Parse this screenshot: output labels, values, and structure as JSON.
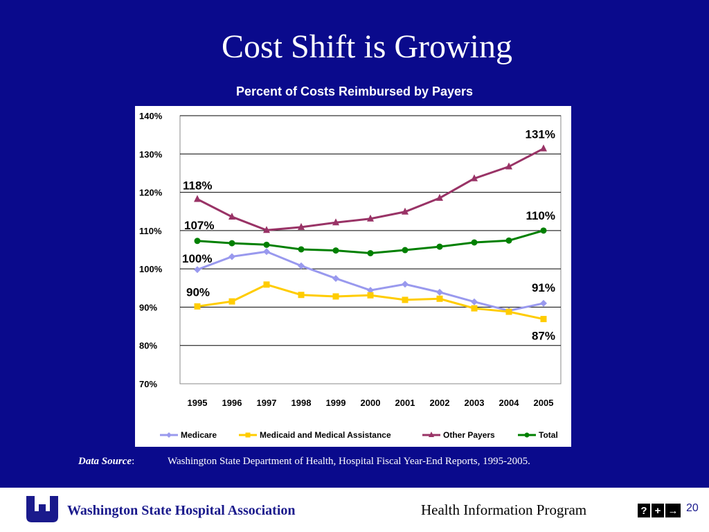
{
  "slide": {
    "title": "Cost Shift is Growing"
  },
  "chart_data": {
    "type": "line",
    "title": "Percent of Costs Reimbursed by Payers",
    "xlabel": "",
    "ylabel": "",
    "x": [
      "1995",
      "1996",
      "1997",
      "1998",
      "1999",
      "2000",
      "2001",
      "2002",
      "2003",
      "2004",
      "2005"
    ],
    "ylim": [
      70,
      140
    ],
    "yticks": [
      70,
      80,
      90,
      100,
      110,
      120,
      130,
      140
    ],
    "ytick_labels": [
      "70%",
      "80%",
      "90%",
      "100%",
      "110%",
      "120%",
      "130%",
      "140%"
    ],
    "grid": true,
    "legend_position": "bottom",
    "series": [
      {
        "name": "Medicare",
        "color": "#9999ee",
        "marker": "diamond",
        "values": [
          99.8,
          103.2,
          104.5,
          100.8,
          97.5,
          94.4,
          96.0,
          93.9,
          91.4,
          89.1,
          91.0
        ]
      },
      {
        "name": "Medicaid and Medical Assistance",
        "color": "#ffcc00",
        "marker": "square",
        "values": [
          90.2,
          91.5,
          95.9,
          93.2,
          92.8,
          93.1,
          91.9,
          92.2,
          89.7,
          88.8,
          86.9
        ]
      },
      {
        "name": "Other Payers",
        "color": "#993366",
        "marker": "triangle",
        "values": [
          118.2,
          113.6,
          110.1,
          110.9,
          112.1,
          113.1,
          114.9,
          118.5,
          123.6,
          126.7,
          131.4
        ]
      },
      {
        "name": "Total",
        "color": "#008000",
        "marker": "circle",
        "values": [
          107.3,
          106.7,
          106.3,
          105.1,
          104.8,
          104.1,
          104.9,
          105.8,
          106.9,
          107.4,
          110.0
        ]
      }
    ],
    "annotations": [
      {
        "text": "118%",
        "x": "1995",
        "series": "Other Payers"
      },
      {
        "text": "107%",
        "x": "1995",
        "series": "Total"
      },
      {
        "text": "100%",
        "x": "1995",
        "series": "Medicare"
      },
      {
        "text": "90%",
        "x": "1995",
        "series": "Medicaid and Medical Assistance"
      },
      {
        "text": "131%",
        "x": "2005",
        "series": "Other Payers"
      },
      {
        "text": "110%",
        "x": "2005",
        "series": "Total"
      },
      {
        "text": "91%",
        "x": "2005",
        "series": "Medicare"
      },
      {
        "text": "87%",
        "x": "2005",
        "series": "Medicaid and Medical Assistance"
      }
    ]
  },
  "source": {
    "label": "Data Source",
    "colon": ":",
    "text": "Washington State Department of Health, Hospital Fiscal Year-End Reports, 1995-2005."
  },
  "footer": {
    "org_name": "Washington State Hospital Association",
    "program_name": "Health Information Program",
    "nav_help": "?",
    "nav_prev": "+",
    "nav_next": "→",
    "page_number": "20",
    "logo_icon": "wsha-logo-icon"
  }
}
